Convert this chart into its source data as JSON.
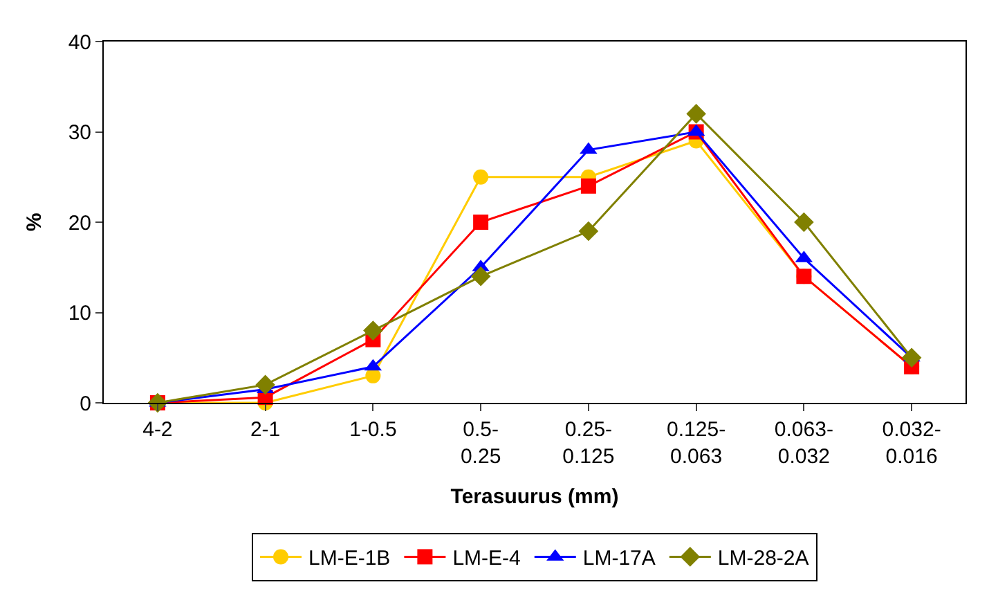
{
  "chart_data": {
    "type": "line",
    "xlabel": "Terasuurus (mm)",
    "ylabel": "%",
    "categories": [
      "4-2",
      "2-1",
      "1-0.5",
      "0.5-0.25",
      "0.25-0.125",
      "0.125-0.063",
      "0.063-0.032",
      "0.032-0.016"
    ],
    "series": [
      {
        "name": "LM-E-1B",
        "color": "#ffcc00",
        "marker": "circle",
        "values": [
          0,
          0,
          3,
          25,
          25,
          29,
          14,
          4
        ]
      },
      {
        "name": "LM-E-4",
        "color": "#ff0000",
        "marker": "square",
        "values": [
          0,
          0.6,
          7,
          20,
          24,
          30,
          14,
          4
        ]
      },
      {
        "name": "LM-17A",
        "color": "#0000ff",
        "marker": "triangle",
        "values": [
          0,
          1.5,
          4,
          15,
          28,
          30,
          16,
          5
        ]
      },
      {
        "name": "LM-28-2A",
        "color": "#808000",
        "marker": "diamond",
        "values": [
          0,
          2,
          8,
          14,
          19,
          32,
          20,
          5
        ]
      }
    ],
    "ylim": [
      0,
      40
    ],
    "yticks": [
      0,
      10,
      20,
      30,
      40
    ],
    "grid": false,
    "legend": "bottom"
  }
}
